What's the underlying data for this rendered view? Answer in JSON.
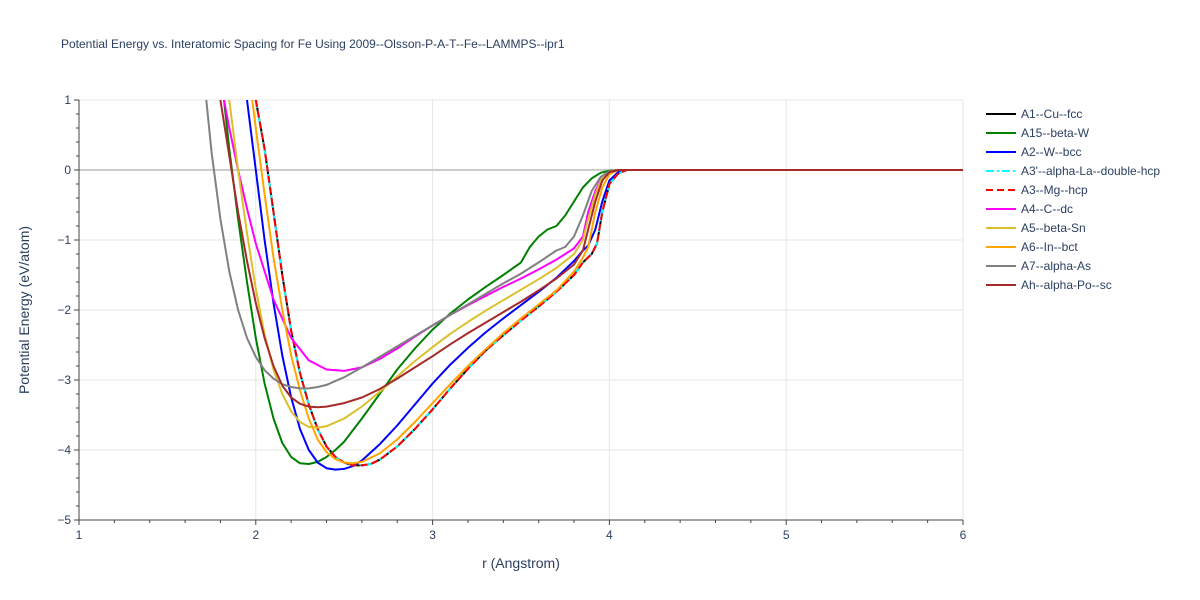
{
  "chart_data": {
    "type": "line",
    "title": "Potential Energy vs. Interatomic Spacing for Fe Using 2009--Olsson-P-A-T--Fe--LAMMPS--ipr1",
    "xlabel": "r (Angstrom)",
    "ylabel": "Potential Energy (eV/atom)",
    "xlim": [
      1,
      6
    ],
    "ylim": [
      -5,
      1
    ],
    "xticks": [
      1,
      2,
      3,
      4,
      5,
      6
    ],
    "yticks": [
      1,
      0,
      -1,
      -2,
      -3,
      -4,
      -5
    ],
    "ytick_labels": [
      "1",
      "0",
      "−1",
      "−2",
      "−3",
      "−4",
      "−5"
    ],
    "grid": true,
    "legend_position": "right",
    "series": [
      {
        "name": "A1--Cu--fcc",
        "color": "#000000",
        "dash": "solid",
        "x": [
          2.0,
          2.05,
          2.1,
          2.15,
          2.2,
          2.25,
          2.3,
          2.35,
          2.4,
          2.45,
          2.5,
          2.55,
          2.6,
          2.65,
          2.7,
          2.8,
          2.9,
          3.0,
          3.1,
          3.2,
          3.3,
          3.4,
          3.5,
          3.6,
          3.7,
          3.8,
          3.85,
          3.9,
          3.93,
          3.96,
          4.0,
          4.05,
          4.1,
          4.2,
          5.0,
          6.0
        ],
        "y": [
          1.0,
          0.3,
          -0.6,
          -1.5,
          -2.3,
          -2.9,
          -3.35,
          -3.7,
          -3.95,
          -4.1,
          -4.18,
          -4.22,
          -4.22,
          -4.2,
          -4.14,
          -3.95,
          -3.7,
          -3.42,
          -3.12,
          -2.84,
          -2.58,
          -2.36,
          -2.15,
          -1.95,
          -1.74,
          -1.5,
          -1.32,
          -1.2,
          -1.05,
          -0.6,
          -0.2,
          -0.05,
          0.0,
          0.0,
          0.0,
          0.0
        ]
      },
      {
        "name": "A15--beta-W",
        "color": "#008000",
        "dash": "solid",
        "x": [
          1.82,
          1.85,
          1.9,
          1.95,
          2.0,
          2.05,
          2.1,
          2.15,
          2.2,
          2.25,
          2.3,
          2.35,
          2.4,
          2.45,
          2.5,
          2.6,
          2.7,
          2.8,
          2.9,
          3.0,
          3.1,
          3.2,
          3.3,
          3.4,
          3.5,
          3.55,
          3.6,
          3.65,
          3.7,
          3.75,
          3.8,
          3.85,
          3.9,
          3.95,
          4.0,
          4.05,
          4.1,
          5.0,
          6.0
        ],
        "y": [
          1.0,
          0.3,
          -0.7,
          -1.6,
          -2.4,
          -3.05,
          -3.55,
          -3.9,
          -4.1,
          -4.19,
          -4.2,
          -4.17,
          -4.1,
          -4.0,
          -3.88,
          -3.55,
          -3.2,
          -2.85,
          -2.55,
          -2.28,
          -2.05,
          -1.85,
          -1.67,
          -1.5,
          -1.32,
          -1.1,
          -0.95,
          -0.85,
          -0.8,
          -0.65,
          -0.45,
          -0.25,
          -0.12,
          -0.04,
          -0.01,
          0.0,
          0.0,
          0.0,
          0.0
        ]
      },
      {
        "name": "A2--W--bcc",
        "color": "#0000ff",
        "dash": "solid",
        "x": [
          1.95,
          2.0,
          2.05,
          2.1,
          2.15,
          2.2,
          2.25,
          2.3,
          2.35,
          2.4,
          2.45,
          2.5,
          2.55,
          2.6,
          2.7,
          2.8,
          2.9,
          3.0,
          3.1,
          3.2,
          3.3,
          3.4,
          3.5,
          3.6,
          3.7,
          3.8,
          3.85,
          3.88,
          3.92,
          3.96,
          4.0,
          4.05,
          4.1,
          5.0,
          6.0
        ],
        "y": [
          1.0,
          0.0,
          -1.0,
          -1.9,
          -2.65,
          -3.25,
          -3.7,
          -4.0,
          -4.18,
          -4.26,
          -4.28,
          -4.27,
          -4.23,
          -4.15,
          -3.92,
          -3.65,
          -3.35,
          -3.05,
          -2.78,
          -2.54,
          -2.32,
          -2.12,
          -1.93,
          -1.74,
          -1.54,
          -1.3,
          -1.15,
          -1.08,
          -0.85,
          -0.45,
          -0.15,
          -0.03,
          0.0,
          0.0,
          0.0
        ]
      },
      {
        "name": "A3'--alpha-La--double-hcp",
        "color": "#00ffff",
        "dash": "dashdot",
        "x": [
          2.0,
          2.05,
          2.1,
          2.15,
          2.2,
          2.25,
          2.3,
          2.35,
          2.4,
          2.45,
          2.5,
          2.55,
          2.6,
          2.65,
          2.7,
          2.8,
          2.9,
          3.0,
          3.1,
          3.2,
          3.3,
          3.4,
          3.5,
          3.6,
          3.7,
          3.8,
          3.85,
          3.9,
          3.93,
          3.96,
          4.0,
          4.05,
          4.1,
          5.0,
          6.0
        ],
        "y": [
          1.0,
          0.3,
          -0.6,
          -1.5,
          -2.3,
          -2.9,
          -3.35,
          -3.7,
          -3.95,
          -4.1,
          -4.18,
          -4.22,
          -4.22,
          -4.2,
          -4.14,
          -3.95,
          -3.7,
          -3.42,
          -3.12,
          -2.84,
          -2.58,
          -2.36,
          -2.15,
          -1.95,
          -1.74,
          -1.5,
          -1.32,
          -1.2,
          -1.05,
          -0.6,
          -0.2,
          -0.05,
          0.0,
          0.0,
          0.0
        ]
      },
      {
        "name": "A3--Mg--hcp",
        "color": "#ff0000",
        "dash": "dash",
        "x": [
          2.0,
          2.05,
          2.1,
          2.15,
          2.2,
          2.25,
          2.3,
          2.35,
          2.4,
          2.45,
          2.5,
          2.55,
          2.6,
          2.65,
          2.7,
          2.8,
          2.9,
          3.0,
          3.1,
          3.2,
          3.3,
          3.4,
          3.5,
          3.6,
          3.7,
          3.8,
          3.85,
          3.9,
          3.93,
          3.96,
          4.0,
          4.05,
          4.1,
          5.0,
          6.0
        ],
        "y": [
          1.0,
          0.3,
          -0.6,
          -1.5,
          -2.3,
          -2.9,
          -3.35,
          -3.7,
          -3.95,
          -4.1,
          -4.18,
          -4.22,
          -4.22,
          -4.2,
          -4.14,
          -3.95,
          -3.7,
          -3.42,
          -3.12,
          -2.84,
          -2.58,
          -2.36,
          -2.15,
          -1.95,
          -1.74,
          -1.5,
          -1.32,
          -1.2,
          -1.05,
          -0.6,
          -0.2,
          -0.05,
          0.0,
          0.0,
          0.0
        ]
      },
      {
        "name": "A4--C--dc",
        "color": "#ff00ff",
        "dash": "solid",
        "x": [
          1.82,
          1.85,
          1.9,
          1.95,
          2.0,
          2.1,
          2.2,
          2.3,
          2.4,
          2.5,
          2.6,
          2.7,
          2.8,
          2.9,
          3.0,
          3.1,
          3.2,
          3.3,
          3.4,
          3.5,
          3.6,
          3.7,
          3.8,
          3.85,
          3.88,
          3.92,
          3.96,
          4.0,
          4.05,
          4.1,
          5.0,
          6.0
        ],
        "y": [
          1.0,
          0.6,
          0.0,
          -0.55,
          -1.05,
          -1.85,
          -2.4,
          -2.72,
          -2.85,
          -2.87,
          -2.82,
          -2.7,
          -2.55,
          -2.38,
          -2.22,
          -2.07,
          -1.93,
          -1.8,
          -1.67,
          -1.55,
          -1.42,
          -1.28,
          -1.12,
          -0.95,
          -0.6,
          -0.3,
          -0.1,
          -0.02,
          0.0,
          0.0,
          0.0,
          0.0
        ]
      },
      {
        "name": "A5--beta-Sn",
        "color": "#dbc02a",
        "dash": "solid",
        "x": [
          1.85,
          1.9,
          1.95,
          2.0,
          2.05,
          2.1,
          2.15,
          2.2,
          2.25,
          2.3,
          2.35,
          2.4,
          2.5,
          2.6,
          2.7,
          2.8,
          2.9,
          3.0,
          3.1,
          3.2,
          3.3,
          3.4,
          3.5,
          3.6,
          3.7,
          3.8,
          3.85,
          3.88,
          3.92,
          3.96,
          4.0,
          4.05,
          4.1,
          5.0,
          6.0
        ],
        "y": [
          1.0,
          0.0,
          -0.9,
          -1.7,
          -2.35,
          -2.85,
          -3.2,
          -3.45,
          -3.6,
          -3.67,
          -3.68,
          -3.66,
          -3.55,
          -3.38,
          -3.17,
          -2.95,
          -2.73,
          -2.53,
          -2.34,
          -2.17,
          -2.01,
          -1.86,
          -1.71,
          -1.56,
          -1.4,
          -1.2,
          -1.0,
          -0.7,
          -0.35,
          -0.1,
          -0.02,
          0.0,
          0.0,
          0.0,
          0.0
        ]
      },
      {
        "name": "A6--In--bct",
        "color": "#ffa500",
        "dash": "solid",
        "x": [
          1.98,
          2.0,
          2.05,
          2.1,
          2.15,
          2.2,
          2.25,
          2.3,
          2.35,
          2.4,
          2.45,
          2.5,
          2.55,
          2.6,
          2.7,
          2.8,
          2.9,
          3.0,
          3.1,
          3.2,
          3.3,
          3.4,
          3.5,
          3.6,
          3.7,
          3.8,
          3.85,
          3.88,
          3.92,
          3.96,
          4.0,
          4.05,
          4.1,
          5.0,
          6.0
        ],
        "y": [
          1.0,
          0.6,
          -0.35,
          -1.25,
          -2.0,
          -2.65,
          -3.15,
          -3.55,
          -3.85,
          -4.03,
          -4.13,
          -4.18,
          -4.19,
          -4.17,
          -4.05,
          -3.85,
          -3.6,
          -3.33,
          -3.06,
          -2.8,
          -2.56,
          -2.33,
          -2.12,
          -1.92,
          -1.72,
          -1.45,
          -1.25,
          -1.1,
          -0.6,
          -0.25,
          -0.06,
          0.0,
          0.0,
          0.0,
          0.0
        ]
      },
      {
        "name": "A7--alpha-As",
        "color": "#808080",
        "dash": "solid",
        "x": [
          1.72,
          1.75,
          1.8,
          1.85,
          1.9,
          1.95,
          2.0,
          2.05,
          2.1,
          2.15,
          2.2,
          2.25,
          2.3,
          2.35,
          2.4,
          2.5,
          2.6,
          2.7,
          2.8,
          2.9,
          3.0,
          3.1,
          3.2,
          3.3,
          3.4,
          3.5,
          3.6,
          3.7,
          3.75,
          3.8,
          3.85,
          3.9,
          3.95,
          4.0,
          4.05,
          4.1,
          5.0,
          6.0
        ],
        "y": [
          1.0,
          0.25,
          -0.7,
          -1.45,
          -2.0,
          -2.4,
          -2.67,
          -2.86,
          -2.98,
          -3.06,
          -3.1,
          -3.12,
          -3.12,
          -3.1,
          -3.07,
          -2.96,
          -2.82,
          -2.67,
          -2.52,
          -2.37,
          -2.22,
          -2.07,
          -1.92,
          -1.77,
          -1.62,
          -1.48,
          -1.32,
          -1.15,
          -1.1,
          -0.95,
          -0.65,
          -0.3,
          -0.1,
          -0.02,
          0.0,
          0.0,
          0.0,
          0.0
        ]
      },
      {
        "name": "Ah--alpha-Po--sc",
        "color": "#a52a2a",
        "dash": "solid",
        "x": [
          1.8,
          1.85,
          1.9,
          1.95,
          2.0,
          2.05,
          2.1,
          2.15,
          2.2,
          2.25,
          2.3,
          2.35,
          2.4,
          2.5,
          2.6,
          2.7,
          2.8,
          2.9,
          3.0,
          3.1,
          3.2,
          3.3,
          3.4,
          3.5,
          3.6,
          3.7,
          3.8,
          3.85,
          3.88,
          3.92,
          3.96,
          4.0,
          4.05,
          4.1,
          5.0,
          6.0
        ],
        "y": [
          1.0,
          0.2,
          -0.6,
          -1.3,
          -1.9,
          -2.4,
          -2.8,
          -3.08,
          -3.25,
          -3.34,
          -3.38,
          -3.39,
          -3.38,
          -3.33,
          -3.25,
          -3.13,
          -2.98,
          -2.82,
          -2.66,
          -2.49,
          -2.33,
          -2.18,
          -2.03,
          -1.88,
          -1.72,
          -1.55,
          -1.35,
          -1.15,
          -0.85,
          -0.45,
          -0.15,
          -0.03,
          0.0,
          0.0,
          0.0,
          0.0
        ]
      }
    ]
  }
}
